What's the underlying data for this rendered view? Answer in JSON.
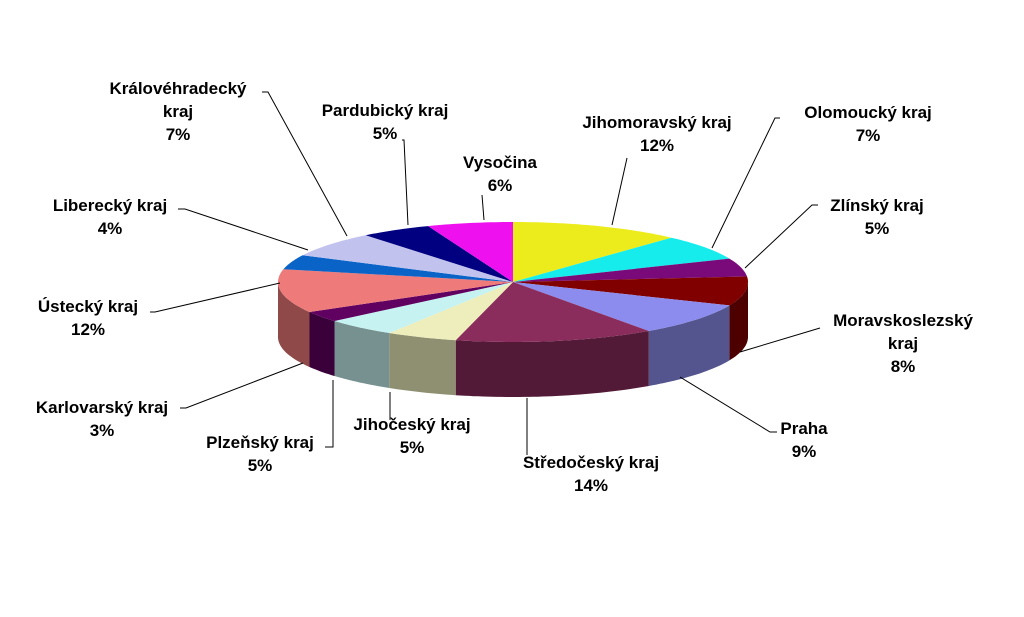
{
  "chart_data": {
    "type": "pie",
    "categories": [
      "Jihomoravský kraj",
      "Olomoucký kraj",
      "Zlínský kraj",
      "Moravskoslezský kraj",
      "Praha",
      "Středočeský kraj",
      "Jihočeský kraj",
      "Plzeňský kraj",
      "Karlovarský kraj",
      "Ústecký kraj",
      "Liberecký kraj",
      "Královéhradecký kraj",
      "Pardubický kraj",
      "Vysočina"
    ],
    "values": [
      12,
      7,
      5,
      8,
      9,
      14,
      5,
      5,
      3,
      12,
      4,
      7,
      5,
      6
    ],
    "value_labels": [
      "12%",
      "7%",
      "5%",
      "8%",
      "9%",
      "14%",
      "5%",
      "5%",
      "3%",
      "12%",
      "4%",
      "7%",
      "5%",
      "6%"
    ],
    "colors": [
      "#ecec1c",
      "#16ecec",
      "#7a0a7a",
      "#800000",
      "#8c8cee",
      "#8a2c5c",
      "#eeeebc",
      "#c6f2f2",
      "#600060",
      "#ee7a7a",
      "#0a64c8",
      "#c2c2ee",
      "#000080",
      "#ee10ee"
    ]
  }
}
